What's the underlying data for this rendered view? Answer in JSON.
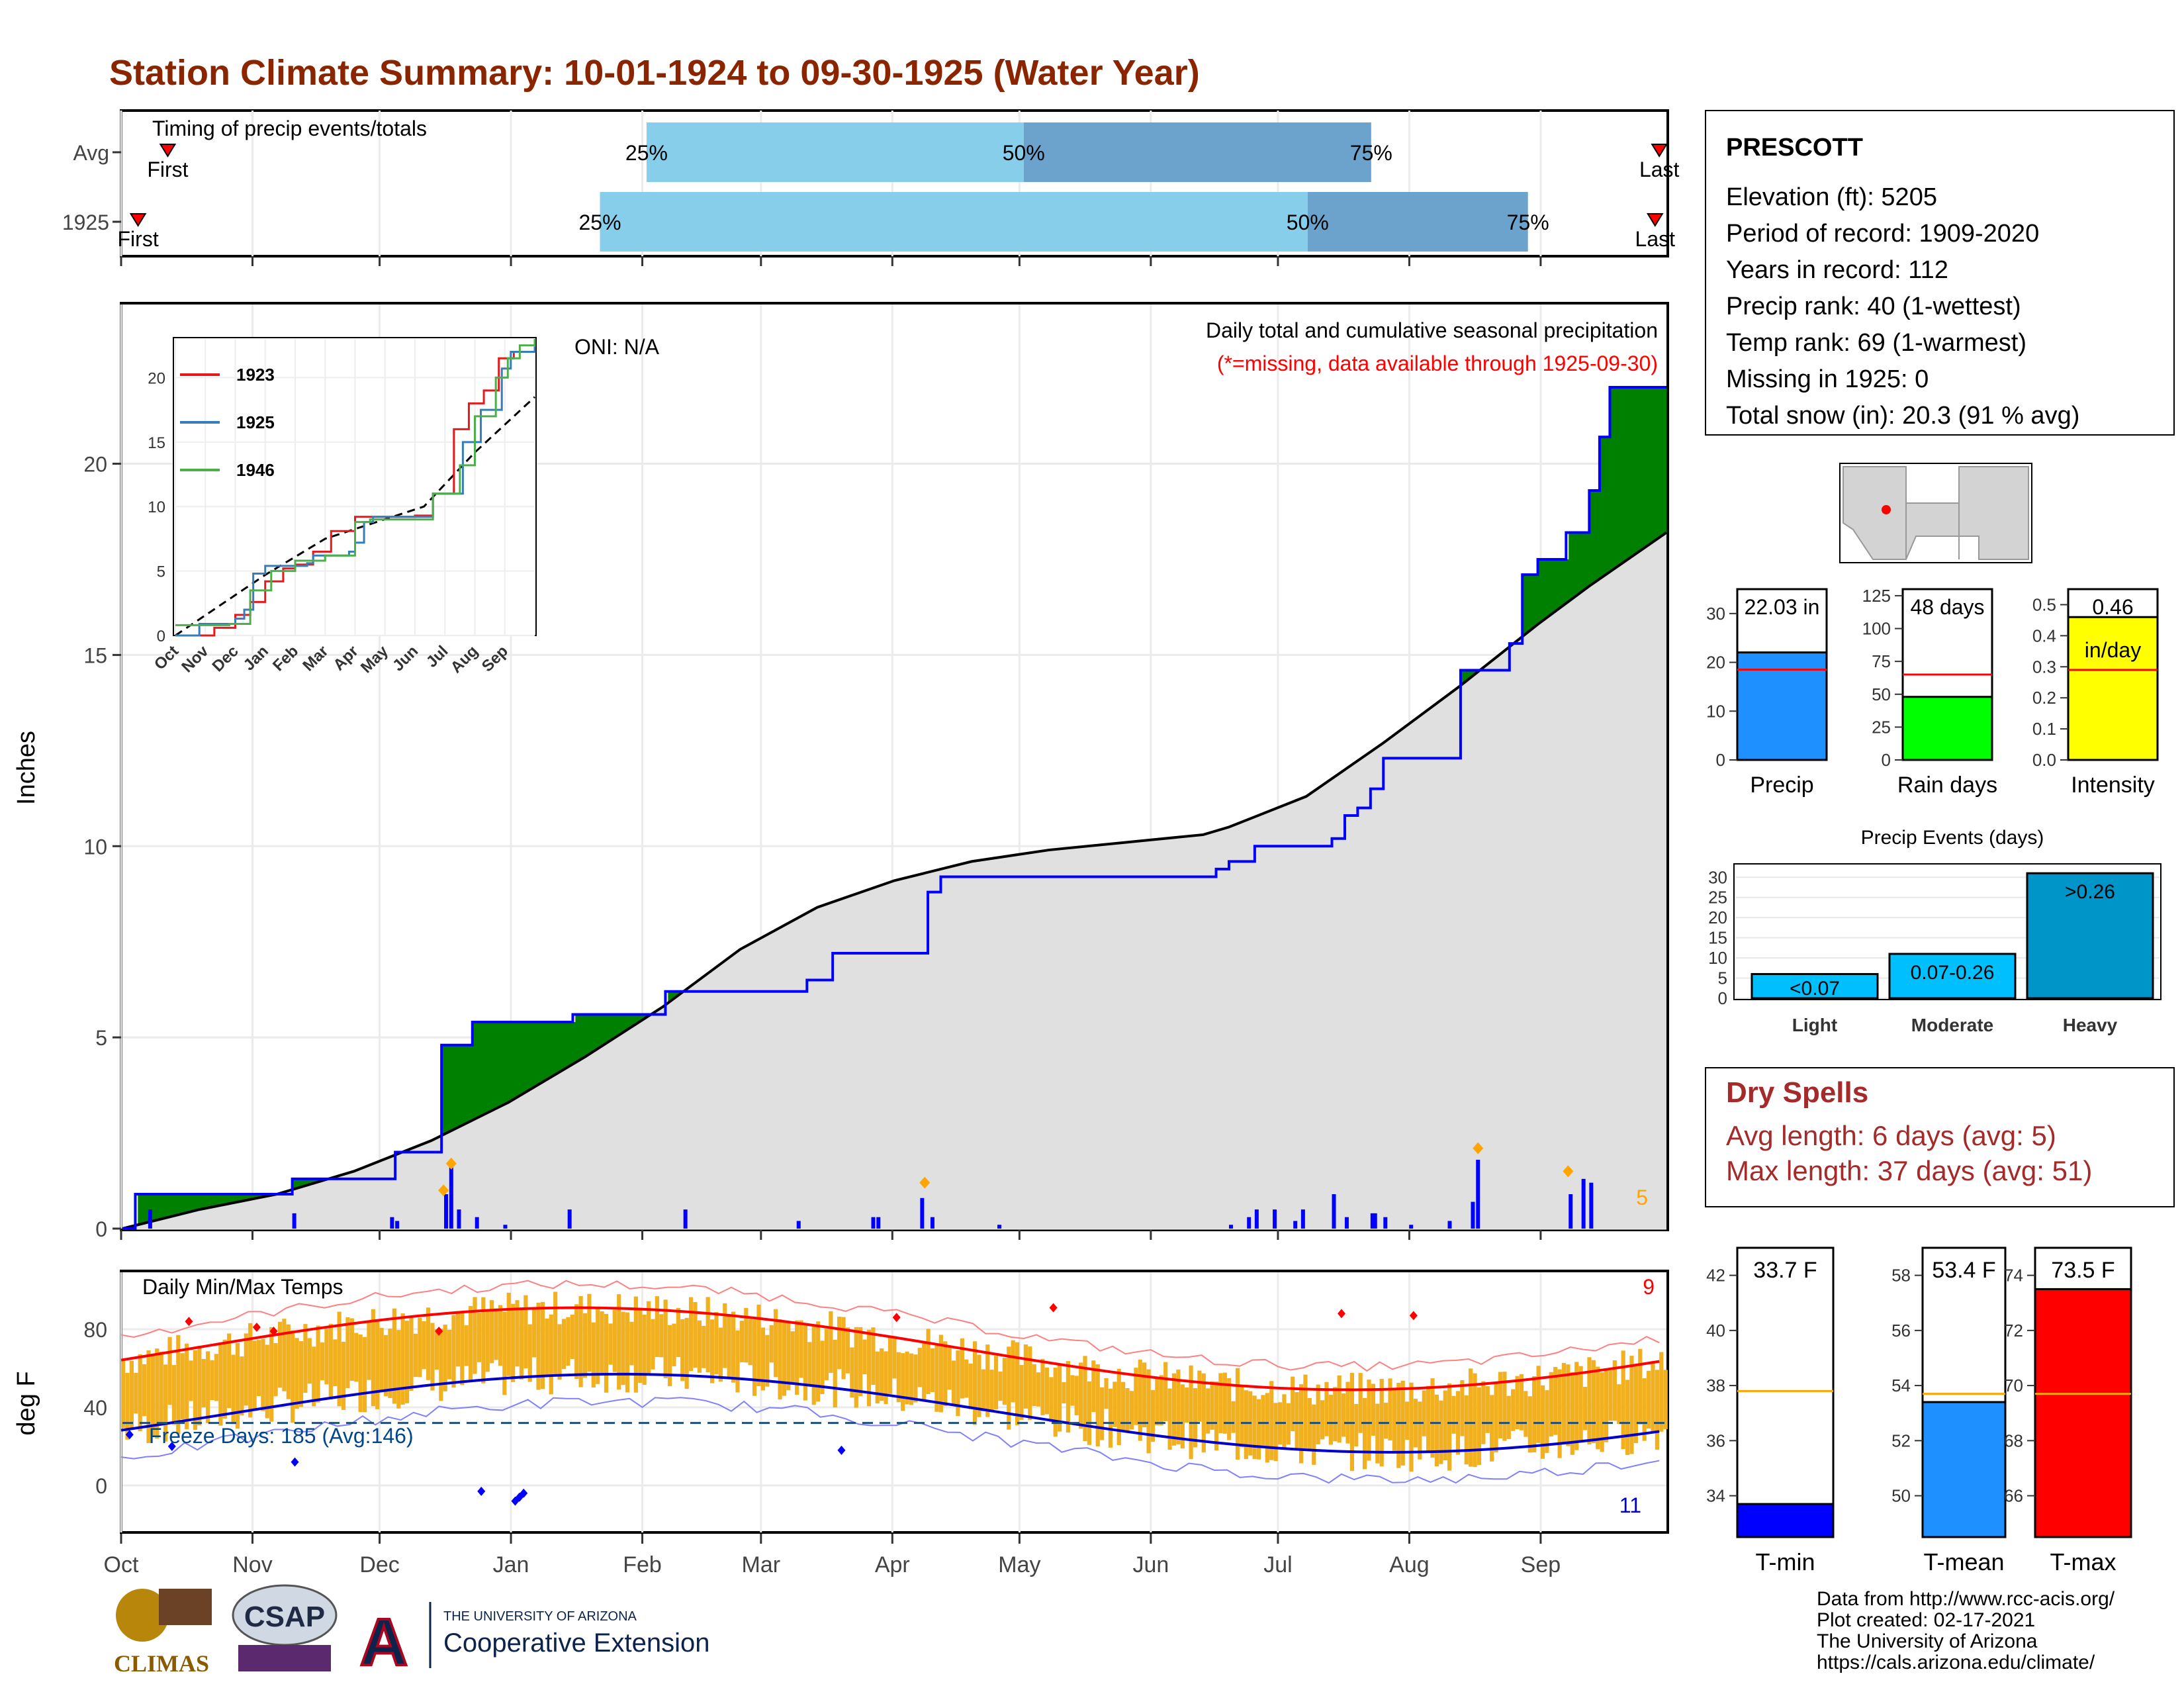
{
  "title": "Station Climate Summary: 10-01-1924 to 09-30-1925 (Water Year)",
  "colors": {
    "title": "#8b2500",
    "precip_blue": "#0000ff",
    "green": "#008000",
    "brown": "#8b5a00",
    "gray": "#e0e0e0",
    "light_blue": "#87ceeb",
    "mid_blue": "#6ba3cc",
    "orange": "#f0b020",
    "red": "#ff0000",
    "dry_red": "#a52a2a"
  },
  "timing_panel": {
    "label": "Timing of precip events/totals",
    "rows": [
      {
        "name": "Avg",
        "first_label": "First",
        "last_label": "Last",
        "first_day": 11,
        "last_day": 363,
        "p25_day": 124,
        "p50_day": 213,
        "p75_day": 295,
        "p25": "25%",
        "p50": "50%",
        "p75": "75%"
      },
      {
        "name": "1925",
        "first_label": "First",
        "last_label": "Last",
        "first_day": 4,
        "last_day": 362,
        "p25_day": 113,
        "p50_day": 280,
        "p75_day": 332,
        "p25": "25%",
        "p50": "50%",
        "p75": "75%"
      }
    ]
  },
  "precip_panel": {
    "ylabel": "Inches",
    "yticks": [
      "0",
      "5",
      "10",
      "15",
      "20"
    ],
    "oni": "ONI: N/A",
    "title": "Daily total and cumulative seasonal precipitation",
    "subtitle": "(*=missing, data available through 1925-09-30)",
    "corner_number": "5",
    "cumulative_1925": [
      [
        0,
        0
      ],
      [
        5,
        0.9
      ],
      [
        40,
        0.9
      ],
      [
        56,
        0.9
      ],
      [
        66,
        1.3
      ],
      [
        97,
        1.3
      ],
      [
        106,
        2
      ],
      [
        115,
        2
      ],
      [
        124,
        4.8
      ],
      [
        130,
        4.8
      ],
      [
        136,
        5.4
      ],
      [
        165,
        5.4
      ],
      [
        175,
        5.6
      ],
      [
        178,
        5.6
      ],
      [
        203,
        5.6
      ],
      [
        210,
        5.6
      ],
      [
        211,
        6.2
      ],
      [
        240,
        6.2
      ],
      [
        255,
        6.2
      ],
      [
        266,
        6.5
      ],
      [
        275,
        6.5
      ],
      [
        276,
        7.2
      ],
      [
        307,
        7.2
      ],
      [
        313,
        8.8
      ],
      [
        318,
        9.2
      ],
      [
        420,
        9.2
      ],
      [
        425,
        9.4
      ],
      [
        430,
        9.6
      ],
      [
        438,
        9.6
      ],
      [
        440,
        10.0
      ],
      [
        443,
        10.0
      ],
      [
        468,
        10.0
      ],
      [
        470,
        10.2
      ],
      [
        475,
        10.8
      ],
      [
        480,
        11.0
      ],
      [
        485,
        11.5
      ],
      [
        490,
        12.3
      ],
      [
        498,
        12.3
      ],
      [
        520,
        14.6
      ],
      [
        528,
        14.6
      ],
      [
        539,
        15.3
      ],
      [
        544,
        17.1
      ],
      [
        550,
        17.5
      ],
      [
        561,
        18.2
      ],
      [
        570,
        19.3
      ],
      [
        572,
        19.3
      ],
      [
        574,
        20.7
      ],
      [
        577,
        20.7
      ],
      [
        578,
        22.0
      ],
      [
        600,
        22.0
      ]
    ],
    "cumulative_avg": [
      [
        0,
        0
      ],
      [
        30,
        0.5
      ],
      [
        60,
        0.9
      ],
      [
        90,
        1.5
      ],
      [
        120,
        2.3
      ],
      [
        150,
        3.3
      ],
      [
        180,
        4.5
      ],
      [
        210,
        5.8
      ],
      [
        240,
        7.3
      ],
      [
        270,
        8.4
      ],
      [
        300,
        9.1
      ],
      [
        330,
        9.6
      ],
      [
        360,
        9.9
      ],
      [
        390,
        10.1
      ],
      [
        420,
        10.3
      ],
      [
        430,
        10.5
      ],
      [
        460,
        11.3
      ],
      [
        490,
        12.7
      ],
      [
        520,
        14.2
      ],
      [
        550,
        15.8
      ],
      [
        570,
        16.8
      ],
      [
        600,
        18.2
      ]
    ],
    "daily_bars": [
      [
        10,
        0.5
      ],
      [
        66,
        0.4
      ],
      [
        104,
        0.3
      ],
      [
        106,
        0.2
      ],
      [
        125,
        0.9
      ],
      [
        127,
        1.6
      ],
      [
        130,
        0.5
      ],
      [
        137,
        0.3
      ],
      [
        148,
        0.1
      ],
      [
        173,
        0.5
      ],
      [
        218,
        0.5
      ],
      [
        262,
        0.2
      ],
      [
        291,
        0.3
      ],
      [
        293,
        0.3
      ],
      [
        310,
        0.8
      ],
      [
        314,
        0.3
      ],
      [
        340,
        0.1
      ],
      [
        430,
        0.1
      ],
      [
        437,
        0.3
      ],
      [
        440,
        0.5
      ],
      [
        447,
        0.5
      ],
      [
        455,
        0.2
      ],
      [
        458,
        0.5
      ],
      [
        470,
        0.9
      ],
      [
        475,
        0.3
      ],
      [
        485,
        0.4
      ],
      [
        486,
        0.4
      ],
      [
        490,
        0.3
      ],
      [
        500,
        0.1
      ],
      [
        515,
        0.2
      ],
      [
        524,
        0.7
      ],
      [
        526,
        1.8
      ],
      [
        562,
        0.9
      ],
      [
        567,
        1.3
      ],
      [
        570,
        1.2
      ]
    ],
    "markers": [
      [
        124,
        1.0
      ],
      [
        127,
        1.7
      ],
      [
        311,
        1.2
      ],
      [
        526,
        2.1
      ],
      [
        561,
        1.5
      ]
    ]
  },
  "inset": {
    "legend": [
      "1923",
      "1925",
      "1946"
    ],
    "legend_colors": [
      "#e41a1c",
      "#377eb8",
      "#4daf4a"
    ],
    "yticks": [
      "0",
      "5",
      "10",
      "15",
      "20"
    ],
    "xticks": [
      "Oct",
      "Nov",
      "Dec",
      "Jan",
      "Feb",
      "Mar",
      "Apr",
      "May",
      "Jun",
      "Jul",
      "Aug",
      "Sep"
    ]
  },
  "temp_panel": {
    "ylabel": "deg F",
    "yticks": [
      "0",
      "40",
      "80"
    ],
    "label": "Daily Min/Max Temps",
    "freeze_label": "Freeze Days: 185 (Avg:146)",
    "count_top": "9",
    "count_bottom": "11",
    "xticks": [
      "Oct",
      "Nov",
      "Dec",
      "Jan",
      "Feb",
      "Mar",
      "Apr",
      "May",
      "Jun",
      "Jul",
      "Aug",
      "Sep"
    ]
  },
  "station": {
    "name": "PRESCOTT",
    "lines": [
      "Elevation (ft): 5205",
      "Period of record: 1909-2020",
      "Years in record: 112",
      "Precip rank: 40 (1-wettest)",
      "Temp rank: 69 (1-warmest)",
      "Missing in 1925: 0",
      "Total snow (in): 20.3 (91 % avg)"
    ]
  },
  "summary_bars": [
    {
      "label": "Precip",
      "value_label": "22.03 in",
      "value": 22.03,
      "avg": 18.5,
      "ymax": 35,
      "ticks": [
        "0",
        "10",
        "20",
        "30"
      ],
      "color": "#1e90ff"
    },
    {
      "label": "Rain days",
      "value_label": "48 days",
      "value": 48,
      "avg": 65,
      "ymax": 130,
      "ticks": [
        "0",
        "25",
        "50",
        "75",
        "100",
        "125"
      ],
      "color": "#00ff00"
    },
    {
      "label": "Intensity",
      "value_label": "0.46",
      "unit_label": "in/day",
      "value": 0.46,
      "avg": 0.29,
      "ymax": 0.55,
      "ticks": [
        "0.0",
        "0.1",
        "0.2",
        "0.3",
        "0.4",
        "0.5"
      ],
      "color": "#ffff00"
    }
  ],
  "events": {
    "title": "Precip Events (days)",
    "ticks": [
      "0",
      "5",
      "10",
      "15",
      "20",
      "25",
      "30"
    ],
    "categories": [
      "Light",
      "Moderate",
      "Heavy"
    ],
    "bar_labels": [
      "<0.07",
      "0.07-0.26",
      ">0.26"
    ],
    "values": [
      6,
      11,
      31
    ]
  },
  "dry_spells": {
    "title": "Dry Spells",
    "lines": [
      "Avg length: 6 days (avg: 5)",
      "Max length: 37 days (avg: 51)"
    ]
  },
  "temp_bars": [
    {
      "label": "T-min",
      "value_label": "33.7 F",
      "value": 33.7,
      "avg": 37.8,
      "ymin": 32.5,
      "ymax": 43,
      "ticks": [
        "34",
        "36",
        "38",
        "40",
        "42"
      ],
      "color": "#0000ff"
    },
    {
      "label": "T-mean",
      "value_label": "53.4 F",
      "value": 53.4,
      "avg": 53.7,
      "ymin": 48.5,
      "ymax": 59,
      "ticks": [
        "50",
        "52",
        "54",
        "56",
        "58"
      ],
      "color": "#1e90ff"
    },
    {
      "label": "T-max",
      "value_label": "73.5 F",
      "value": 73.5,
      "avg": 69.7,
      "ymin": 64.5,
      "ymax": 75,
      "ticks": [
        "66",
        "68",
        "70",
        "72",
        "74"
      ],
      "color": "#ff0000"
    }
  ],
  "footer": {
    "lines": [
      "Data from http://www.rcc-acis.org/",
      "Plot created: 02-17-2021",
      "The University of Arizona",
      "https://cals.arizona.edu/climate/"
    ],
    "logos": [
      "CLIMAS",
      "CSAP",
      "THE UNIVERSITY OF ARIZONA",
      "Cooperative Extension"
    ]
  }
}
